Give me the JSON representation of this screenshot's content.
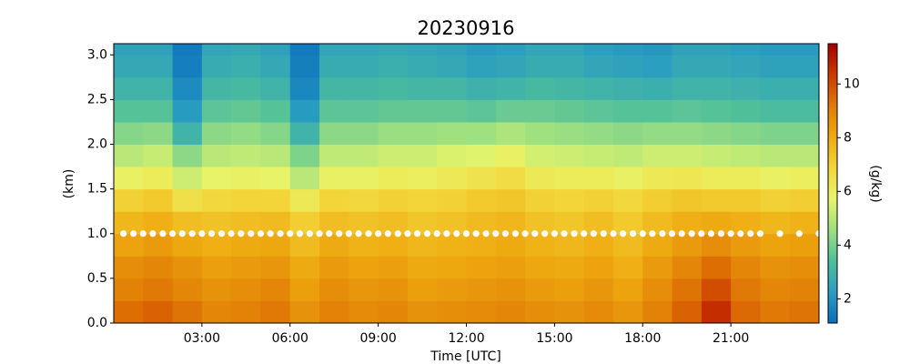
{
  "chart_data": {
    "type": "heatmap",
    "title": "20230916",
    "x_label": "Time [UTC]",
    "y_label": "(km)",
    "x": [
      0.5,
      1.5,
      2.5,
      3.5,
      4.5,
      5.5,
      6.5,
      7.5,
      8.5,
      9.5,
      10.5,
      11.5,
      12.5,
      13.5,
      14.5,
      15.5,
      16.5,
      17.5,
      18.5,
      19.5,
      20.5,
      21.5,
      22.5,
      23.5
    ],
    "y": [
      0.125,
      0.375,
      0.625,
      0.875,
      1.125,
      1.375,
      1.625,
      1.875,
      2.125,
      2.375,
      2.625,
      2.875,
      3.125
    ],
    "z": [
      [
        9.4,
        9.6,
        9.3,
        8.9,
        9.0,
        9.2,
        8.6,
        9.0,
        8.8,
        8.9,
        8.6,
        8.7,
        8.8,
        8.9,
        8.7,
        8.6,
        8.8,
        8.5,
        9.0,
        9.6,
        10.6,
        9.5,
        9.2,
        9.3
      ],
      [
        9.0,
        9.2,
        8.9,
        8.6,
        8.7,
        8.9,
        8.3,
        8.7,
        8.5,
        8.6,
        8.3,
        8.4,
        8.5,
        8.6,
        8.4,
        8.3,
        8.5,
        8.2,
        8.7,
        9.3,
        10.0,
        9.2,
        8.9,
        9.0
      ],
      [
        8.7,
        8.9,
        8.6,
        8.3,
        8.4,
        8.5,
        8.0,
        8.4,
        8.2,
        8.3,
        8.0,
        8.1,
        8.2,
        8.3,
        8.1,
        8.0,
        8.2,
        7.9,
        8.4,
        8.9,
        9.4,
        8.9,
        8.6,
        8.7
      ],
      [
        8.2,
        8.4,
        8.1,
        7.9,
        8.0,
        8.1,
        7.6,
        8.0,
        7.8,
        7.9,
        7.7,
        7.8,
        7.9,
        8.0,
        7.8,
        7.7,
        7.9,
        7.6,
        8.0,
        8.4,
        8.7,
        8.4,
        8.2,
        8.3
      ],
      [
        7.7,
        7.9,
        7.5,
        7.4,
        7.5,
        7.6,
        7.1,
        7.5,
        7.4,
        7.5,
        7.3,
        7.4,
        7.6,
        7.7,
        7.4,
        7.3,
        7.5,
        7.2,
        7.6,
        7.9,
        8.0,
        7.9,
        7.7,
        7.8
      ],
      [
        7.0,
        7.2,
        6.5,
        6.8,
        6.9,
        6.9,
        6.2,
        6.9,
        6.8,
        7.0,
        6.9,
        7.0,
        7.2,
        7.3,
        7.0,
        6.9,
        7.0,
        6.8,
        7.1,
        7.3,
        7.2,
        7.2,
        7.0,
        7.1
      ],
      [
        5.9,
        6.1,
        5.3,
        5.8,
        5.9,
        5.8,
        5.0,
        5.9,
        5.9,
        6.1,
        6.0,
        6.2,
        6.4,
        6.6,
        6.2,
        6.1,
        6.1,
        5.9,
        6.2,
        6.3,
        6.1,
        6.1,
        5.9,
        6.0
      ],
      [
        5.0,
        5.2,
        4.3,
        5.0,
        5.1,
        5.0,
        4.1,
        5.1,
        5.1,
        5.3,
        5.3,
        5.5,
        5.6,
        5.9,
        5.4,
        5.3,
        5.2,
        5.1,
        5.3,
        5.3,
        5.2,
        5.1,
        5.0,
        5.0
      ],
      [
        4.2,
        4.3,
        3.0,
        4.3,
        4.4,
        4.2,
        3.0,
        4.3,
        4.3,
        4.5,
        4.5,
        4.6,
        4.6,
        4.8,
        4.6,
        4.5,
        4.4,
        4.3,
        4.4,
        4.4,
        4.3,
        4.2,
        4.1,
        4.1
      ],
      [
        3.5,
        3.5,
        2.2,
        3.6,
        3.7,
        3.5,
        2.2,
        3.6,
        3.6,
        3.7,
        3.7,
        3.7,
        3.6,
        3.8,
        3.8,
        3.7,
        3.6,
        3.5,
        3.5,
        3.6,
        3.5,
        3.4,
        3.3,
        3.3
      ],
      [
        3.0,
        3.0,
        1.8,
        3.1,
        3.2,
        3.0,
        1.7,
        3.1,
        3.1,
        3.2,
        3.1,
        3.1,
        2.9,
        3.0,
        3.2,
        3.1,
        3.0,
        2.9,
        2.8,
        3.0,
        3.0,
        2.9,
        2.8,
        2.8
      ],
      [
        2.6,
        2.6,
        1.5,
        2.7,
        2.8,
        2.6,
        1.5,
        2.7,
        2.7,
        2.8,
        2.7,
        2.6,
        2.4,
        2.5,
        2.7,
        2.7,
        2.5,
        2.4,
        2.3,
        2.6,
        2.6,
        2.5,
        2.4,
        2.4
      ],
      [
        2.4,
        2.4,
        1.4,
        2.5,
        2.6,
        2.4,
        1.4,
        2.5,
        2.5,
        2.6,
        2.5,
        2.4,
        2.2,
        2.3,
        2.5,
        2.5,
        2.3,
        2.2,
        2.1,
        2.4,
        2.4,
        2.3,
        2.2,
        2.2
      ]
    ],
    "xlim": [
      0,
      24
    ],
    "ylim": [
      0,
      3.125
    ],
    "xticks": [
      {
        "value": 3,
        "label": "03:00"
      },
      {
        "value": 6,
        "label": "06:00"
      },
      {
        "value": 9,
        "label": "09:00"
      },
      {
        "value": 12,
        "label": "12:00"
      },
      {
        "value": 15,
        "label": "15:00"
      },
      {
        "value": 18,
        "label": "18:00"
      },
      {
        "value": 21,
        "label": "21:00"
      }
    ],
    "yticks": [
      {
        "value": 0,
        "label": "0.0"
      },
      0.5,
      {
        "value": 1,
        "label": "1.0"
      },
      1.5,
      {
        "value": 2,
        "label": "2.0"
      },
      2.5,
      {
        "value": 3,
        "label": "3.0"
      }
    ],
    "colormap": [
      "#0a6ebd",
      "#2a9ec0",
      "#4fbf9a",
      "#9ee080",
      "#e8f56a",
      "#f3d63a",
      "#eeaa10",
      "#e07a05",
      "#cc3a00",
      "#a30000"
    ],
    "clim": [
      1.1,
      11.5
    ],
    "colorbar_ticks": [
      2,
      4,
      6,
      8,
      10
    ],
    "colorbar_label": "(g/kg)",
    "markers": {
      "color": "#ffffff",
      "x": [
        0.33,
        0.67,
        1,
        1.33,
        1.67,
        2,
        2.33,
        2.67,
        3,
        3.33,
        3.67,
        4,
        4.33,
        4.67,
        5,
        5.33,
        5.67,
        6,
        6.33,
        6.67,
        7,
        7.33,
        7.67,
        8,
        8.33,
        8.67,
        9,
        9.33,
        9.67,
        10,
        10.33,
        10.67,
        11,
        11.33,
        11.67,
        12,
        12.33,
        12.67,
        13,
        13.33,
        13.67,
        14,
        14.33,
        14.67,
        15,
        15.33,
        15.67,
        16,
        16.33,
        16.67,
        17,
        17.33,
        17.67,
        18,
        18.33,
        18.67,
        19,
        19.33,
        19.67,
        20,
        20.33,
        20.67,
        21,
        21.33,
        21.67,
        22,
        22.67,
        23.33,
        24
      ],
      "y": [
        1,
        1,
        1,
        1,
        1,
        1,
        1,
        1,
        1,
        1,
        1,
        1,
        1,
        1,
        1,
        1,
        1,
        1,
        1,
        1,
        1,
        1,
        1,
        1,
        1,
        1,
        1,
        1,
        1,
        1,
        1,
        1,
        1,
        1,
        1,
        1,
        1,
        1,
        1,
        1,
        1,
        1,
        1,
        1,
        1,
        1,
        1,
        1,
        1,
        1,
        1,
        1,
        1,
        1,
        1,
        1,
        1,
        1,
        1,
        1,
        1,
        1,
        1,
        1,
        1,
        1,
        1,
        1,
        1
      ]
    }
  }
}
